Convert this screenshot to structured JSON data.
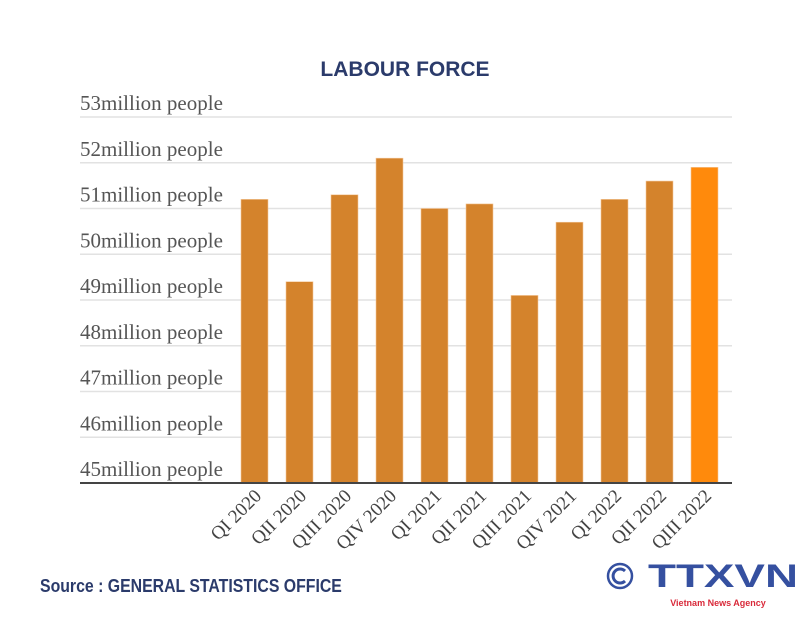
{
  "chart_data": {
    "type": "bar",
    "title": "LABOUR FORCE",
    "categories": [
      "QI 2020",
      "QII 2020",
      "QIII 2020",
      "QIV 2020",
      "QI 2021",
      "QII 2021",
      "QIII 2021",
      "QIV 2021",
      "QI 2022",
      "QII 2022",
      "QIII 2022"
    ],
    "values": [
      51.2,
      49.4,
      51.3,
      52.1,
      51.0,
      51.1,
      49.1,
      50.7,
      51.2,
      51.6,
      51.9
    ],
    "ylim": [
      45,
      53
    ],
    "yticks": [
      45,
      46,
      47,
      48,
      49,
      50,
      51,
      52,
      53
    ],
    "ytick_suffix": "million people",
    "grid": true,
    "colors": {
      "bar": "#d4832c",
      "highlight": "#ff8a0c"
    }
  },
  "source": "Source : GENERAL STATISTICS OFFICE",
  "logo": {
    "text": "TTXVN",
    "subtitle": "Vietnam News Agency",
    "copyright": "©"
  }
}
